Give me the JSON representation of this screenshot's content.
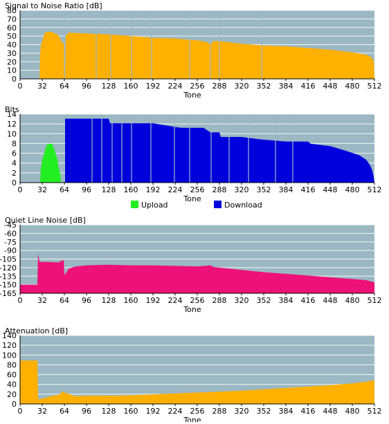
{
  "colors": {
    "plot_bg": "#9bb8c3",
    "orange": "#ffb000",
    "upload": "#22ee22",
    "download": "#0000dd",
    "pink": "#ee1177"
  },
  "chart_data": [
    {
      "id": "snr",
      "type": "area",
      "title": "Signal to Noise Ratio [dB]",
      "xlabel": "Tone",
      "ylabel": "",
      "xlim": [
        0,
        512
      ],
      "ylim": [
        0,
        80
      ],
      "xticks": [
        "0",
        "32",
        "64",
        "96",
        "128",
        "160",
        "192",
        "224",
        "256",
        "288",
        "320",
        "352",
        "384",
        "416",
        "448",
        "480",
        "512"
      ],
      "yticks": [
        "0",
        "10",
        "20",
        "30",
        "40",
        "50",
        "60",
        "70",
        "80"
      ],
      "grid": true,
      "series": [
        {
          "color": "#ffb000",
          "gaps": [
            64,
            110,
            131,
            161,
            190,
            245,
            275,
            288,
            349
          ],
          "points": [
            [
              28,
              0
            ],
            [
              29,
              30
            ],
            [
              30,
              40
            ],
            [
              32,
              44
            ],
            [
              34,
              50
            ],
            [
              36,
              54
            ],
            [
              40,
              55
            ],
            [
              46,
              55
            ],
            [
              50,
              53
            ],
            [
              54,
              52
            ],
            [
              58,
              47
            ],
            [
              60,
              43
            ],
            [
              62,
              42
            ],
            [
              64,
              41
            ],
            [
              65,
              0
            ],
            [
              66,
              50
            ],
            [
              68,
              52
            ],
            [
              70,
              54
            ],
            [
              96,
              53
            ],
            [
              128,
              52
            ],
            [
              160,
              50
            ],
            [
              192,
              48
            ],
            [
              224,
              47
            ],
            [
              256,
              45
            ],
            [
              270,
              43
            ],
            [
              276,
              40
            ],
            [
              278,
              44
            ],
            [
              288,
              44
            ],
            [
              320,
              41
            ],
            [
              352,
              39
            ],
            [
              384,
              38
            ],
            [
              416,
              36
            ],
            [
              448,
              34
            ],
            [
              480,
              31
            ],
            [
              500,
              28
            ],
            [
              508,
              25
            ],
            [
              511,
              20
            ],
            [
              512,
              0
            ]
          ]
        }
      ]
    },
    {
      "id": "bits",
      "type": "area",
      "title": "Bits",
      "xlabel": "Tone",
      "ylabel": "",
      "xlim": [
        0,
        512
      ],
      "ylim": [
        0,
        15
      ],
      "xticks": [
        "0",
        "32",
        "64",
        "96",
        "128",
        "160",
        "192",
        "224",
        "256",
        "288",
        "320",
        "352",
        "384",
        "416",
        "448",
        "480",
        "512"
      ],
      "yticks": [
        "0",
        "2",
        "4",
        "6",
        "8",
        "10",
        "12",
        "14"
      ],
      "grid": true,
      "legend": {
        "position": "bottom",
        "entries": [
          "Upload",
          "Download"
        ]
      },
      "series": [
        {
          "name": "Upload",
          "color": "#22ee22",
          "points": [
            [
              29,
              0
            ],
            [
              30,
              3
            ],
            [
              32,
              5
            ],
            [
              34,
              6
            ],
            [
              36,
              7
            ],
            [
              38,
              8
            ],
            [
              40,
              8.5
            ],
            [
              46,
              8.5
            ],
            [
              48,
              8
            ],
            [
              50,
              7
            ],
            [
              52,
              6
            ],
            [
              54,
              5
            ],
            [
              56,
              3
            ],
            [
              58,
              2
            ],
            [
              59,
              0
            ]
          ]
        },
        {
          "name": "Download",
          "color": "#0000dd",
          "gaps": [
            104,
            118,
            133,
            147,
            161,
            189,
            223,
            245,
            276,
            302,
            330,
            369,
            394
          ],
          "points": [
            [
              65,
              0
            ],
            [
              65,
              14
            ],
            [
              128,
              14
            ],
            [
              130,
              13
            ],
            [
              192,
              13
            ],
            [
              232,
              12
            ],
            [
              265,
              12
            ],
            [
              275,
              11
            ],
            [
              288,
              11
            ],
            [
              290,
              10
            ],
            [
              320,
              10
            ],
            [
              345,
              9.5
            ],
            [
              384,
              9
            ],
            [
              416,
              9
            ],
            [
              420,
              8.5
            ],
            [
              448,
              8
            ],
            [
              470,
              7
            ],
            [
              490,
              6
            ],
            [
              500,
              5
            ],
            [
              505,
              4
            ],
            [
              508,
              3
            ],
            [
              510,
              2
            ],
            [
              511,
              1
            ],
            [
              512,
              0
            ]
          ]
        }
      ]
    },
    {
      "id": "qln",
      "type": "area",
      "title": "Quiet Line Noise [dB]",
      "xlabel": "Tone",
      "ylabel": "",
      "xlim": [
        0,
        512
      ],
      "ylim": [
        -165,
        -45
      ],
      "baseline": -165,
      "xticks": [
        "0",
        "32",
        "64",
        "96",
        "128",
        "160",
        "192",
        "224",
        "256",
        "288",
        "320",
        "352",
        "384",
        "416",
        "448",
        "480",
        "512"
      ],
      "yticks": [
        "-165",
        "-150",
        "-135",
        "-120",
        "-105",
        "-90",
        "-75",
        "-60",
        "-45"
      ],
      "yticks_top_down": [
        "-60",
        "-75",
        "-90",
        "-105",
        "-120",
        "-135",
        "-150",
        "-165"
      ],
      "grid": true,
      "series": [
        {
          "color": "#ee1177",
          "points": [
            [
              0,
              -150
            ],
            [
              25,
              -150
            ],
            [
              26,
              -95
            ],
            [
              28,
              -110
            ],
            [
              40,
              -110
            ],
            [
              56,
              -111
            ],
            [
              60,
              -108
            ],
            [
              63,
              -107
            ],
            [
              64,
              -132
            ],
            [
              66,
              -130
            ],
            [
              70,
              -122
            ],
            [
              80,
              -118
            ],
            [
              96,
              -116
            ],
            [
              128,
              -115
            ],
            [
              160,
              -116
            ],
            [
              192,
              -116
            ],
            [
              224,
              -117
            ],
            [
              256,
              -118
            ],
            [
              275,
              -116
            ],
            [
              280,
              -119
            ],
            [
              288,
              -120
            ],
            [
              320,
              -124
            ],
            [
              352,
              -128
            ],
            [
              384,
              -131
            ],
            [
              416,
              -134
            ],
            [
              448,
              -137
            ],
            [
              480,
              -140
            ],
            [
              500,
              -142
            ],
            [
              512,
              -146
            ]
          ]
        }
      ]
    },
    {
      "id": "atten",
      "type": "area",
      "title": "Attenuation [dB]",
      "xlabel": "Tone",
      "ylabel": "",
      "xlim": [
        0,
        512
      ],
      "ylim": [
        0,
        150
      ],
      "xticks": [
        "0",
        "32",
        "64",
        "96",
        "128",
        "160",
        "192",
        "224",
        "256",
        "288",
        "320",
        "352",
        "384",
        "416",
        "448",
        "480",
        "512"
      ],
      "yticks": [
        "0",
        "20",
        "40",
        "60",
        "80",
        "100",
        "120",
        "140"
      ],
      "grid": true,
      "series": [
        {
          "color": "#ffb000",
          "points": [
            [
              0,
              95
            ],
            [
              25,
              95
            ],
            [
              26,
              10
            ],
            [
              32,
              12
            ],
            [
              48,
              18
            ],
            [
              56,
              20
            ],
            [
              62,
              28
            ],
            [
              64,
              25
            ],
            [
              70,
              22
            ],
            [
              80,
              17
            ],
            [
              96,
              18
            ],
            [
              128,
              18
            ],
            [
              160,
              19
            ],
            [
              192,
              21
            ],
            [
              224,
              23
            ],
            [
              256,
              25
            ],
            [
              288,
              27
            ],
            [
              320,
              29
            ],
            [
              352,
              32
            ],
            [
              384,
              35
            ],
            [
              416,
              38
            ],
            [
              448,
              41
            ],
            [
              480,
              45
            ],
            [
              500,
              49
            ],
            [
              512,
              52
            ]
          ]
        }
      ]
    }
  ]
}
